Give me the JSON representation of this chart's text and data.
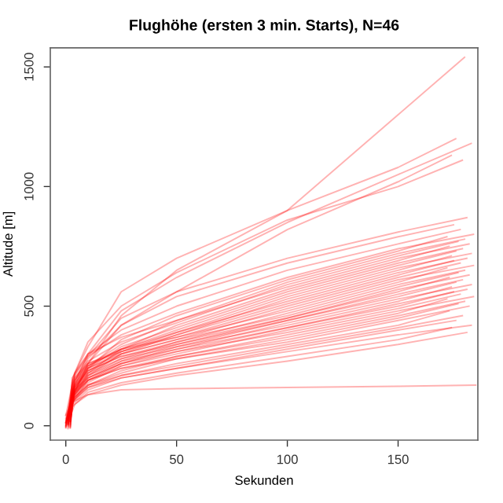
{
  "chart_data": {
    "type": "line",
    "title": "Flughöhe (ersten 3 min. Starts), N=46",
    "xlabel": "Sekunden",
    "ylabel": "Altitude [m]",
    "xlim": [
      -7,
      186
    ],
    "ylim": [
      -60,
      1580
    ],
    "xticks": [
      0,
      50,
      100,
      150
    ],
    "yticks": [
      0,
      500,
      1000,
      1500
    ],
    "grid": false,
    "legend": false,
    "line_style": "solid",
    "marker": "none",
    "series": [
      {
        "color": "#ff0000",
        "x": [
          0,
          3,
          10,
          25,
          50,
          100,
          150,
          180
        ],
        "values": [
          0,
          160,
          260,
          460,
          650,
          900,
          1300,
          1540
        ]
      },
      {
        "color": "#ff0000",
        "x": [
          1,
          3,
          10,
          25,
          50,
          100,
          150,
          176
        ],
        "values": [
          12,
          200,
          330,
          560,
          700,
          900,
          1080,
          1200
        ]
      },
      {
        "color": "#ff0000",
        "x": [
          2,
          4,
          10,
          25,
          50,
          100,
          150,
          183
        ],
        "values": [
          24,
          180,
          300,
          480,
          620,
          850,
          1050,
          1180
        ]
      },
      {
        "color": "#ff0000",
        "x": [
          0,
          3,
          10,
          25,
          50,
          100,
          150,
          174
        ],
        "values": [
          -5,
          150,
          280,
          420,
          560,
          820,
          1020,
          1130
        ]
      },
      {
        "color": "#ff0000",
        "x": [
          1,
          4,
          10,
          25,
          50,
          100,
          150,
          179
        ],
        "values": [
          33,
          220,
          350,
          500,
          640,
          860,
          1000,
          1110
        ]
      },
      {
        "color": "#ff0000",
        "x": [
          2,
          3,
          10,
          25,
          50,
          100,
          150,
          181
        ],
        "values": [
          3,
          170,
          290,
          450,
          560,
          700,
          810,
          870
        ]
      },
      {
        "color": "#ff0000",
        "x": [
          0,
          4,
          10,
          25,
          50,
          100,
          150,
          175
        ],
        "values": [
          15,
          140,
          260,
          420,
          540,
          680,
          790,
          840
        ]
      },
      {
        "color": "#ff0000",
        "x": [
          1,
          3,
          10,
          25,
          50,
          100,
          150,
          178
        ],
        "values": [
          6,
          200,
          300,
          400,
          500,
          650,
          760,
          820
        ]
      },
      {
        "color": "#ff0000",
        "x": [
          2,
          4,
          10,
          25,
          50,
          100,
          150,
          184
        ],
        "values": [
          21,
          210,
          290,
          380,
          470,
          620,
          740,
          800
        ]
      },
      {
        "color": "#ff0000",
        "x": [
          0,
          3,
          10,
          25,
          50,
          100,
          150,
          172
        ],
        "values": [
          -2,
          130,
          240,
          360,
          460,
          610,
          730,
          790
        ]
      },
      {
        "color": "#ff0000",
        "x": [
          1,
          4,
          10,
          25,
          50,
          100,
          150,
          180
        ],
        "values": [
          9,
          160,
          250,
          340,
          440,
          600,
          720,
          780
        ]
      },
      {
        "color": "#ff0000",
        "x": [
          2,
          3,
          10,
          25,
          50,
          100,
          150,
          177
        ],
        "values": [
          27,
          190,
          270,
          350,
          430,
          590,
          710,
          770
        ]
      },
      {
        "color": "#ff0000",
        "x": [
          0,
          4,
          10,
          25,
          50,
          100,
          150,
          182
        ],
        "values": [
          42,
          220,
          300,
          370,
          440,
          580,
          700,
          760
        ]
      },
      {
        "color": "#ff0000",
        "x": [
          1,
          3,
          10,
          25,
          50,
          100,
          150,
          173
        ],
        "values": [
          1,
          120,
          220,
          320,
          420,
          570,
          690,
          750
        ]
      },
      {
        "color": "#ff0000",
        "x": [
          2,
          4,
          10,
          25,
          50,
          100,
          150,
          179
        ],
        "values": [
          18,
          150,
          240,
          330,
          410,
          560,
          680,
          740
        ]
      },
      {
        "color": "#ff0000",
        "x": [
          0,
          3,
          10,
          25,
          50,
          100,
          150,
          176
        ],
        "values": [
          4,
          180,
          260,
          320,
          400,
          550,
          670,
          730
        ]
      },
      {
        "color": "#ff0000",
        "x": [
          1,
          4,
          10,
          25,
          50,
          100,
          150,
          183
        ],
        "values": [
          30,
          200,
          260,
          310,
          390,
          540,
          660,
          720
        ]
      },
      {
        "color": "#ff0000",
        "x": [
          2,
          3,
          10,
          25,
          50,
          100,
          150,
          174
        ],
        "values": [
          -8,
          110,
          210,
          300,
          380,
          530,
          650,
          710
        ]
      },
      {
        "color": "#ff0000",
        "x": [
          0,
          4,
          10,
          25,
          50,
          100,
          150,
          181
        ],
        "values": [
          11,
          170,
          250,
          320,
          390,
          520,
          640,
          700
        ]
      },
      {
        "color": "#ff0000",
        "x": [
          1,
          3,
          10,
          25,
          50,
          100,
          150,
          175
        ],
        "values": [
          7,
          150,
          230,
          310,
          380,
          510,
          630,
          690
        ]
      },
      {
        "color": "#ff0000",
        "x": [
          2,
          4,
          10,
          25,
          50,
          100,
          150,
          178
        ],
        "values": [
          36,
          190,
          250,
          320,
          370,
          500,
          620,
          680
        ]
      },
      {
        "color": "#ff0000",
        "x": [
          0,
          3,
          10,
          25,
          50,
          100,
          150,
          184
        ],
        "values": [
          2,
          130,
          220,
          300,
          360,
          490,
          610,
          670
        ]
      },
      {
        "color": "#ff0000",
        "x": [
          1,
          4,
          10,
          25,
          50,
          100,
          150,
          172
        ],
        "values": [
          14,
          160,
          240,
          310,
          370,
          480,
          600,
          660
        ]
      },
      {
        "color": "#ff0000",
        "x": [
          2,
          3,
          10,
          25,
          50,
          100,
          150,
          180
        ],
        "values": [
          -3,
          140,
          210,
          280,
          350,
          470,
          590,
          650
        ]
      },
      {
        "color": "#ff0000",
        "x": [
          0,
          4,
          10,
          25,
          50,
          100,
          150,
          177
        ],
        "values": [
          25,
          180,
          240,
          300,
          360,
          460,
          580,
          640
        ]
      },
      {
        "color": "#ff0000",
        "x": [
          1,
          3,
          10,
          25,
          50,
          100,
          150,
          182
        ],
        "values": [
          5,
          120,
          200,
          270,
          340,
          450,
          570,
          630
        ]
      },
      {
        "color": "#ff0000",
        "x": [
          2,
          4,
          10,
          25,
          50,
          100,
          150,
          173
        ],
        "values": [
          17,
          150,
          230,
          290,
          350,
          450,
          560,
          620
        ]
      },
      {
        "color": "#ff0000",
        "x": [
          0,
          3,
          10,
          25,
          50,
          100,
          150,
          179
        ],
        "values": [
          -6,
          100,
          190,
          260,
          330,
          440,
          550,
          610
        ]
      },
      {
        "color": "#ff0000",
        "x": [
          1,
          4,
          10,
          25,
          50,
          100,
          150,
          176
        ],
        "values": [
          22,
          170,
          230,
          290,
          340,
          440,
          540,
          600
        ]
      },
      {
        "color": "#ff0000",
        "x": [
          2,
          3,
          10,
          25,
          50,
          100,
          150,
          183
        ],
        "values": [
          8,
          130,
          200,
          260,
          320,
          430,
          530,
          590
        ]
      },
      {
        "color": "#ff0000",
        "x": [
          0,
          4,
          10,
          25,
          50,
          100,
          150,
          174
        ],
        "values": [
          13,
          160,
          220,
          280,
          330,
          420,
          520,
          580
        ]
      },
      {
        "color": "#ff0000",
        "x": [
          1,
          3,
          10,
          25,
          50,
          100,
          150,
          181
        ],
        "values": [
          -1,
          110,
          180,
          250,
          310,
          410,
          510,
          570
        ]
      },
      {
        "color": "#ff0000",
        "x": [
          2,
          4,
          10,
          25,
          50,
          100,
          150,
          175
        ],
        "values": [
          19,
          140,
          210,
          270,
          320,
          410,
          500,
          560
        ]
      },
      {
        "color": "#ff0000",
        "x": [
          0,
          3,
          10,
          25,
          50,
          100,
          150,
          178
        ],
        "values": [
          10,
          120,
          190,
          250,
          300,
          400,
          490,
          550
        ]
      },
      {
        "color": "#ff0000",
        "x": [
          1,
          4,
          10,
          25,
          50,
          100,
          150,
          184
        ],
        "values": [
          28,
          150,
          200,
          260,
          310,
          390,
          480,
          540
        ]
      },
      {
        "color": "#ff0000",
        "x": [
          2,
          3,
          10,
          25,
          50,
          100,
          150,
          172
        ],
        "values": [
          -4,
          100,
          170,
          230,
          290,
          380,
          470,
          530
        ]
      },
      {
        "color": "#ff0000",
        "x": [
          0,
          4,
          10,
          25,
          50,
          100,
          150,
          180
        ],
        "values": [
          16,
          130,
          190,
          240,
          290,
          370,
          460,
          520
        ]
      },
      {
        "color": "#ff0000",
        "x": [
          1,
          3,
          10,
          25,
          50,
          100,
          150,
          177
        ],
        "values": [
          -7,
          110,
          170,
          220,
          280,
          360,
          450,
          510
        ]
      },
      {
        "color": "#ff0000",
        "x": [
          2,
          4,
          10,
          25,
          50,
          100,
          150,
          182
        ],
        "values": [
          20,
          140,
          190,
          240,
          280,
          350,
          440,
          500
        ]
      },
      {
        "color": "#ff0000",
        "x": [
          0,
          3,
          10,
          25,
          50,
          100,
          150,
          173
        ],
        "values": [
          -9,
          100,
          160,
          210,
          260,
          340,
          420,
          480
        ]
      },
      {
        "color": "#ff0000",
        "x": [
          1,
          4,
          10,
          25,
          50,
          100,
          150,
          179
        ],
        "values": [
          23,
          120,
          170,
          210,
          250,
          330,
          410,
          460
        ]
      },
      {
        "color": "#ff0000",
        "x": [
          2,
          3,
          10,
          25,
          50,
          100,
          150,
          176
        ],
        "values": [
          -10,
          90,
          150,
          200,
          240,
          320,
          400,
          440
        ]
      },
      {
        "color": "#ff0000",
        "x": [
          0,
          4,
          10,
          25,
          50,
          100,
          150,
          183
        ],
        "values": [
          31,
          110,
          160,
          200,
          240,
          310,
          380,
          420
        ]
      },
      {
        "color": "#ff0000",
        "x": [
          1,
          3,
          10,
          25,
          50,
          100,
          150,
          174
        ],
        "values": [
          -12,
          80,
          140,
          180,
          220,
          290,
          360,
          410
        ]
      },
      {
        "color": "#ff0000",
        "x": [
          2,
          4,
          10,
          25,
          50,
          100,
          150,
          181
        ],
        "values": [
          38,
          90,
          130,
          170,
          210,
          270,
          340,
          390
        ]
      },
      {
        "color": "#ff0000",
        "x": [
          0,
          3,
          10,
          25,
          50,
          100,
          150,
          185
        ],
        "values": [
          45,
          100,
          130,
          150,
          155,
          160,
          165,
          170
        ]
      }
    ]
  }
}
